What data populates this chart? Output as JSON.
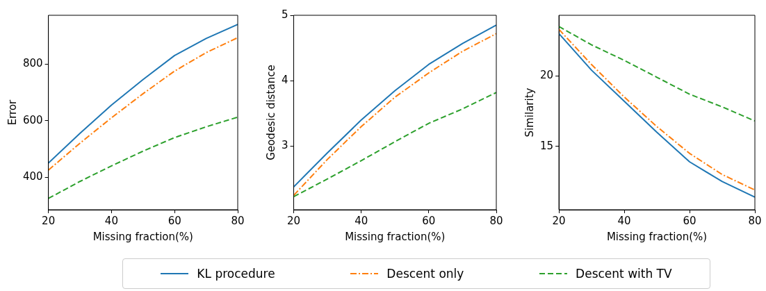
{
  "chart_data": [
    {
      "type": "line",
      "xlabel": "Missing fraction(%)",
      "ylabel": "Error",
      "x": [
        20,
        30,
        40,
        50,
        60,
        70,
        80
      ],
      "xlim": [
        20,
        80
      ],
      "xticks": [
        20,
        40,
        60,
        80
      ],
      "ylim": [
        285,
        972
      ],
      "yticks": [
        400,
        600,
        800
      ],
      "grid": false,
      "legend": "bottom",
      "series": [
        {
          "name": "KL procedure",
          "color": "#1f77b4",
          "line_style": "solid",
          "values": [
            450,
            555,
            655,
            745,
            830,
            890,
            940
          ]
        },
        {
          "name": "Descent only",
          "color": "#ff7f0e",
          "line_style": "dashdot",
          "values": [
            425,
            520,
            610,
            695,
            775,
            840,
            893
          ]
        },
        {
          "name": "Descent with TV",
          "color": "#2ca02c",
          "line_style": "dashed",
          "values": [
            325,
            385,
            440,
            492,
            540,
            578,
            612
          ]
        }
      ]
    },
    {
      "type": "line",
      "xlabel": "Missing fraction(%)",
      "ylabel": "Geodesic distance",
      "x": [
        20,
        30,
        40,
        50,
        60,
        70,
        80
      ],
      "xlim": [
        20,
        80
      ],
      "xticks": [
        20,
        40,
        60,
        80
      ],
      "ylim": [
        2.03,
        5
      ],
      "yticks": [
        3,
        4,
        5
      ],
      "grid": false,
      "series": [
        {
          "color": "#1f77b4",
          "line_style": "solid",
          "values": [
            2.38,
            2.9,
            3.4,
            3.85,
            4.25,
            4.57,
            4.85
          ]
        },
        {
          "color": "#ff7f0e",
          "line_style": "dashdot",
          "values": [
            2.25,
            2.8,
            3.3,
            3.75,
            4.12,
            4.45,
            4.72
          ]
        },
        {
          "color": "#2ca02c",
          "line_style": "dashed",
          "values": [
            2.23,
            2.5,
            2.78,
            3.07,
            3.35,
            3.57,
            3.82
          ]
        }
      ]
    },
    {
      "type": "line",
      "xlabel": "Missing fraction(%)",
      "ylabel": "Similarity",
      "x": [
        20,
        30,
        40,
        50,
        60,
        70,
        80
      ],
      "xlim": [
        20,
        80
      ],
      "xticks": [
        20,
        40,
        60,
        80
      ],
      "ylim": [
        10.5,
        24.3
      ],
      "yticks": [
        15,
        20
      ],
      "grid": false,
      "series": [
        {
          "color": "#1f77b4",
          "line_style": "solid",
          "values": [
            23.0,
            20.4,
            18.2,
            16.0,
            13.9,
            12.5,
            11.4
          ]
        },
        {
          "color": "#ff7f0e",
          "line_style": "dashdot",
          "values": [
            23.3,
            20.8,
            18.5,
            16.4,
            14.5,
            13.0,
            11.9
          ]
        },
        {
          "color": "#2ca02c",
          "line_style": "dashed",
          "values": [
            23.5,
            22.2,
            21.1,
            19.9,
            18.7,
            17.8,
            16.8
          ]
        }
      ]
    }
  ]
}
